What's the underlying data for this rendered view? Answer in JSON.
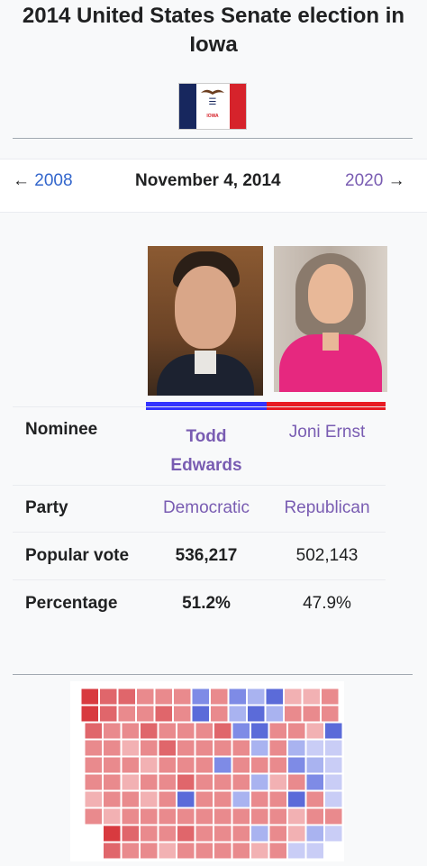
{
  "page": {
    "title": "2014 United States Senate election in Iowa"
  },
  "flag": {
    "state_text": "IOWA"
  },
  "nav": {
    "prev_arrow": "←",
    "prev_year": "2008",
    "date": "November 4, 2014",
    "next_year": "2020",
    "next_arrow": "→"
  },
  "table": {
    "nominee_label": "Nominee",
    "party_label": "Party",
    "vote_label": "Popular vote",
    "pct_label": "Percentage",
    "candidates": [
      {
        "name_line1": "Todd",
        "name_line2": "Edwards",
        "party": "Democratic",
        "votes": "536,217",
        "percentage": "51.2%",
        "color": "#3333ff",
        "winner": true
      },
      {
        "name": "Joni Ernst",
        "party": "Republican",
        "votes": "502,143",
        "percentage": "47.9%",
        "color": "#e81b23",
        "winner": false
      }
    ]
  },
  "colors": {
    "link": "#3366cc",
    "visited": "#795cb2",
    "dem": "#3333ff",
    "rep": "#e81b23"
  }
}
